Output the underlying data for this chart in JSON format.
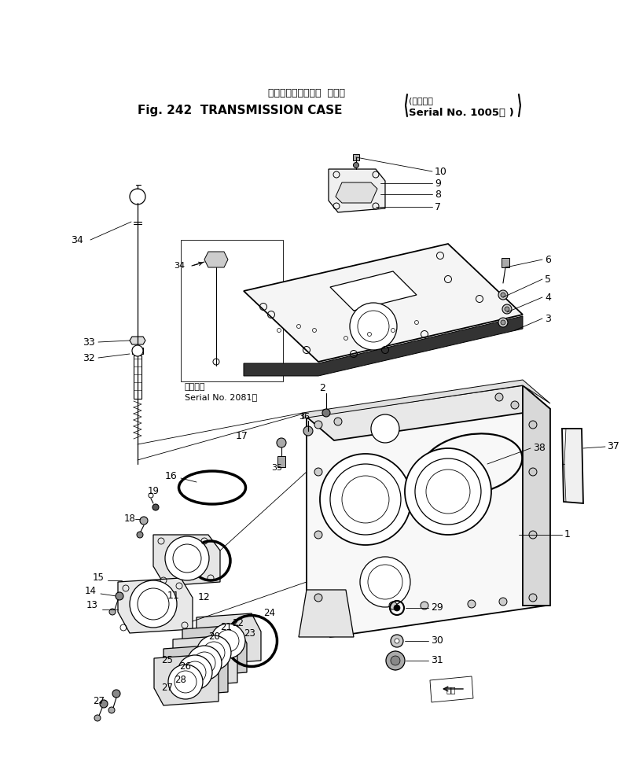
{
  "title_japanese": "トランスミッション  ケース",
  "title_english": "Fig. 242  TRANSMISSION CASE",
  "serial_bracket": "(適用号機",
  "serial_line2": "Serial No. 1005～ )",
  "serial_note1": "適用号機",
  "serial_note2": "Serial No. 2081～",
  "bg_color": "#ffffff",
  "fig_width": 7.9,
  "fig_height": 9.88,
  "dpi": 100
}
